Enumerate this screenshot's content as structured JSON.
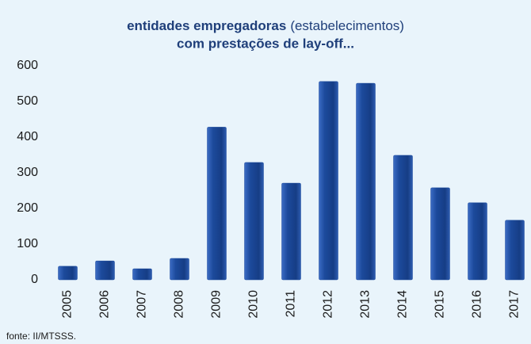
{
  "chart_data": {
    "type": "bar",
    "title": [
      "entidades empregadoras",
      "(estabelecimentos)",
      "com prestações de lay-off..."
    ],
    "categories": [
      "2005",
      "2006",
      "2007",
      "2008",
      "2009",
      "2010",
      "2011",
      "2012",
      "2013",
      "2014",
      "2015",
      "2016",
      "2017"
    ],
    "values": [
      38,
      53,
      31,
      60,
      428,
      329,
      271,
      556,
      551,
      349,
      258,
      216,
      167
    ],
    "color": "#1c4a9c",
    "ylim": [
      0,
      600
    ],
    "yticks": [
      0,
      100,
      200,
      300,
      400,
      500,
      600
    ],
    "grid": false,
    "source": "fonte: II/MTSSS."
  }
}
